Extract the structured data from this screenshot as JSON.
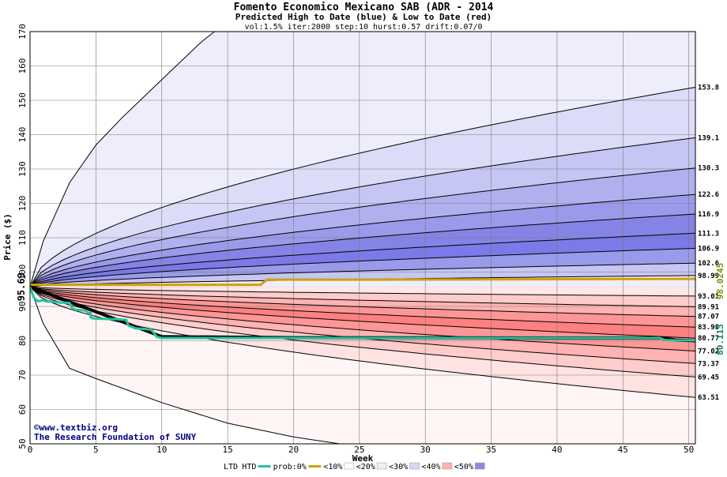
{
  "chart_data": {
    "type": "area",
    "title": "Fomento Economico Mexicano SAB (ADR - 2014",
    "subtitle": "Predicted High to Date (blue) &  Low to Date (red)",
    "params": "vol:1.5% iter:2000 step:10 hurst:0.57 drift:0.07/0",
    "xlabel": "Week",
    "ylabel": "Price ($)",
    "xlim": [
      0,
      50.5
    ],
    "ylim": [
      50,
      170
    ],
    "x_ticks": [
      "0",
      "5",
      "10",
      "15",
      "20",
      "25",
      "30",
      "35",
      "40",
      "45",
      "50"
    ],
    "y_ticks": [
      "50",
      "60",
      "70",
      "80",
      "90",
      "100",
      "110",
      "120",
      "130",
      "140",
      "150",
      "160",
      "170"
    ],
    "grid": true,
    "start_price": 95.69,
    "start_label": "95.69",
    "high_curves": [
      {
        "label": "153.8",
        "end": 153.8
      },
      {
        "label": "139.1",
        "end": 139.1
      },
      {
        "label": "130.3",
        "end": 130.3
      },
      {
        "label": "122.6",
        "end": 122.6
      },
      {
        "label": "116.9",
        "end": 116.9
      },
      {
        "label": "111.3",
        "end": 111.3
      },
      {
        "label": "106.9",
        "end": 106.9
      },
      {
        "label": "102.6",
        "end": 102.6
      },
      {
        "label": "98.99",
        "end": 98.99
      }
    ],
    "low_curves": [
      {
        "label": "93.01",
        "end": 93.01
      },
      {
        "label": "89.91",
        "end": 89.91
      },
      {
        "label": "87.07",
        "end": 87.07
      },
      {
        "label": "83.98",
        "end": 83.98
      },
      {
        "label": "80.77",
        "end": 80.77
      },
      {
        "label": "77.02",
        "end": 77.02
      },
      {
        "label": "73.37",
        "end": 73.37
      },
      {
        "label": "69.45",
        "end": 69.45
      },
      {
        "label": "63.51",
        "end": 63.51
      }
    ],
    "outer_high_curve": {
      "x": [
        0,
        1,
        3,
        5,
        7,
        10,
        13,
        14
      ],
      "y": [
        95.69,
        109,
        126,
        137,
        145,
        156,
        167,
        170
      ]
    },
    "outer_low_curve": {
      "x": [
        0,
        1,
        3,
        5,
        10,
        15,
        20,
        23.5
      ],
      "y": [
        95.69,
        85,
        72,
        69,
        62,
        56,
        52,
        50
      ]
    },
    "htd_series": {
      "name": "HTD",
      "x": [
        0,
        0.2,
        0.3,
        0.6,
        1.0,
        1.3,
        1.5,
        2.0,
        3.0,
        3.1,
        3.2,
        3.5,
        4.2,
        4.4,
        4.6,
        4.6,
        4.8,
        5.5,
        6.5,
        7.3,
        7.4,
        7.5,
        8.0,
        8.8,
        9.2,
        9.4,
        9.6,
        10.0,
        15.0,
        20.0,
        25.0,
        30.0,
        35.0,
        40.0,
        47.8,
        48.2,
        49.0,
        50.5
      ],
      "y": [
        95.69,
        93.5,
        92.5,
        91.5,
        91.8,
        91.4,
        91.5,
        91.2,
        91.0,
        90.3,
        89.4,
        89.0,
        88.8,
        88.2,
        88.1,
        86.8,
        86.5,
        86.4,
        86.3,
        86.1,
        85.0,
        84.4,
        83.6,
        83.4,
        83.2,
        82.3,
        81.2,
        80.8,
        80.8,
        80.8,
        80.8,
        80.8,
        80.8,
        80.8,
        80.8,
        80.2,
        80.113,
        80.113
      ]
    },
    "ltd_series": {
      "name": "LTD",
      "x": [
        0,
        10,
        20,
        30,
        40,
        48,
        49,
        50.5
      ],
      "y": [
        95.69,
        81.2,
        80.9,
        80.85,
        80.8,
        80.8,
        80.2,
        80.0
      ]
    },
    "prob_line": {
      "name": "prob:0%",
      "x": [
        0,
        17.5,
        18,
        27,
        50.5
      ],
      "y": [
        96.3,
        96.3,
        97.8,
        97.8,
        98.0245
      ]
    },
    "right_labels": {
      "gold": "98.0245",
      "green": "80.113"
    },
    "colors": {
      "blue_bands": [
        "#ededfb",
        "#dcdcf8",
        "#c6c6f4",
        "#b0b0ef",
        "#9a9aeb",
        "#8484e6",
        "#7a7ae8",
        "#9a9aeb",
        "#c6c6f4",
        "#ededfb"
      ],
      "red_bands": [
        "#fff5f5",
        "#ffe3e3",
        "#ffcccc",
        "#ffb3b3",
        "#ff9696",
        "#ff8080",
        "#ff9696",
        "#ffb3b3",
        "#ffcccc",
        "#fde7e7"
      ],
      "htd": "#22c4a0",
      "prob": "#d4a000",
      "gold_label": "#8a8a00",
      "green_label": "#138a5a",
      "grid": "#7a7a7a",
      "source_text": "#000080"
    },
    "source": "The Research Foundation of SUNY",
    "copyright": "©www.textbiz.org",
    "legend": {
      "items": [
        {
          "label": "LTD",
          "swatch": ""
        },
        {
          "label": "HTD",
          "swatch": "#22c4a0"
        },
        {
          "label": "prob:0%",
          "swatch": "#d4a000"
        },
        {
          "label": "<10%",
          "swatch": "#ffffff"
        },
        {
          "label": "<20%",
          "swatch": "#ededfb"
        },
        {
          "label": "<30%",
          "swatch": "#d7d7f7"
        },
        {
          "label": "<40%",
          "swatch": "#ffb0b0"
        },
        {
          "label": "<50%",
          "swatch": "#8a8ae8"
        }
      ]
    }
  }
}
